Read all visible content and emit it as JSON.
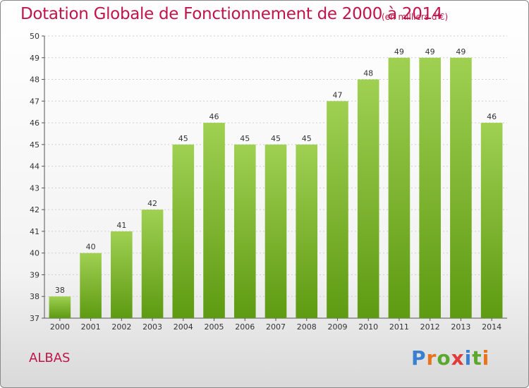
{
  "header": {
    "title": "Dotation Globale de Fonctionnement de 2000 à 2014",
    "unit": "(en milliers d'€)"
  },
  "footer": {
    "commune": "ALBAS",
    "logo": "Proxiti"
  },
  "colors": {
    "title": "#c0144a",
    "bar_top": "#9fd052",
    "bar_bottom": "#5e9a12",
    "logo_letters": [
      "#3a7fd0",
      "#e8731c",
      "#5aa82c",
      "#e03a3a",
      "#3a7fd0",
      "#5aa82c",
      "#e8731c"
    ]
  },
  "chart_data": {
    "type": "bar",
    "categories": [
      "2000",
      "2001",
      "2002",
      "2003",
      "2004",
      "2005",
      "2006",
      "2007",
      "2008",
      "2009",
      "2010",
      "2011",
      "2012",
      "2013",
      "2014"
    ],
    "values": [
      38,
      40,
      41,
      42,
      45,
      46,
      45,
      45,
      45,
      47,
      48,
      49,
      49,
      49,
      46
    ],
    "ylim": [
      37,
      50
    ],
    "yticks": [
      37,
      38,
      39,
      40,
      41,
      42,
      43,
      44,
      45,
      46,
      47,
      48,
      49,
      50
    ],
    "grid": true,
    "data_labels": true
  }
}
